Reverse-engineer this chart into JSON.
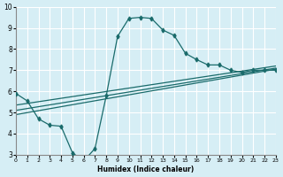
{
  "bg_color": "#d6eef5",
  "line_color": "#1a6b6b",
  "grid_color": "#ffffff",
  "xlabel": "Humidex (Indice chaleur)",
  "ylim": [
    3,
    10
  ],
  "xlim": [
    0,
    23
  ],
  "yticks": [
    3,
    4,
    5,
    6,
    7,
    8,
    9,
    10
  ],
  "xticks": [
    0,
    1,
    2,
    3,
    4,
    5,
    6,
    7,
    8,
    9,
    10,
    11,
    12,
    13,
    14,
    15,
    16,
    17,
    18,
    19,
    20,
    21,
    22,
    23
  ],
  "curve_x": [
    0,
    1,
    2,
    3,
    4,
    5,
    6,
    7,
    8,
    9,
    10,
    11,
    12,
    13,
    14,
    15,
    16,
    17,
    18,
    19,
    20,
    21,
    22,
    23
  ],
  "curve_y": [
    5.9,
    5.55,
    4.7,
    4.4,
    4.35,
    3.1,
    2.7,
    3.3,
    5.8,
    8.6,
    9.45,
    9.5,
    9.45,
    8.9,
    8.65,
    7.8,
    7.5,
    7.25,
    7.25,
    7.0,
    6.9,
    7.0,
    7.0,
    7.0
  ],
  "line1_x": [
    0,
    23
  ],
  "line1_y": [
    4.9,
    7.05
  ],
  "line2_x": [
    0,
    23
  ],
  "line2_y": [
    5.1,
    7.1
  ],
  "line3_x": [
    0,
    23
  ],
  "line3_y": [
    5.35,
    7.2
  ]
}
